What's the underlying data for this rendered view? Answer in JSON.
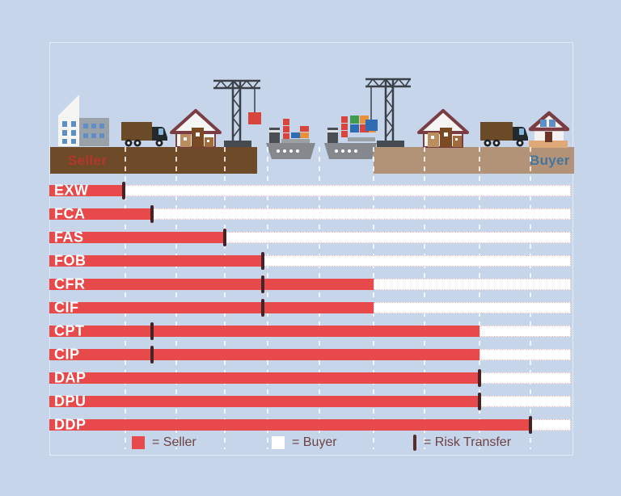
{
  "colors": {
    "background": "#c6d5ea",
    "seller_bar": "#e8494a",
    "buyer_bar": "#ffffff",
    "risk_marker": "#462325",
    "legend_text": "#6d4242",
    "seller_ground": "#6f4a29",
    "buyer_ground": "#b29377",
    "seller_label_text": "#b5362c",
    "buyer_label_text": "#44759f"
  },
  "illustration": {
    "seller_label": "Seller",
    "buyer_label": "Buyer",
    "icons": [
      "factory-icon",
      "truck-icon",
      "warehouse-icon",
      "crane-icon",
      "cargo-ship-icon",
      "cargo-ship-icon",
      "crane-icon",
      "warehouse-icon",
      "truck-icon",
      "house-icon"
    ]
  },
  "rows": [
    {
      "label": "EXW",
      "seller_end_pct": 14.3,
      "risk_pct": 14.3
    },
    {
      "label": "FCA",
      "seller_end_pct": 19.7,
      "risk_pct": 19.7
    },
    {
      "label": "FAS",
      "seller_end_pct": 33.6,
      "risk_pct": 33.6
    },
    {
      "label": "FOB",
      "seller_end_pct": 40.9,
      "risk_pct": 40.9
    },
    {
      "label": "CFR",
      "seller_end_pct": 62.2,
      "risk_pct": 40.9
    },
    {
      "label": "CIF",
      "seller_end_pct": 62.2,
      "risk_pct": 40.9
    },
    {
      "label": "CPT",
      "seller_end_pct": 82.5,
      "risk_pct": 19.7
    },
    {
      "label": "CIP",
      "seller_end_pct": 82.5,
      "risk_pct": 19.7
    },
    {
      "label": "DAP",
      "seller_end_pct": 82.5,
      "risk_pct": 82.5
    },
    {
      "label": "DPU",
      "seller_end_pct": 82.5,
      "risk_pct": 82.5
    },
    {
      "label": "DDP",
      "seller_end_pct": 92.2,
      "risk_pct": 92.2
    }
  ],
  "gridlines_pct": [
    14.6,
    24.3,
    33.6,
    41.9,
    51.8,
    62.2,
    71.9,
    82.5,
    92.2
  ],
  "legend": {
    "seller_label": "= Seller",
    "buyer_label": "= Buyer",
    "risk_label": "= Risk Transfer"
  }
}
